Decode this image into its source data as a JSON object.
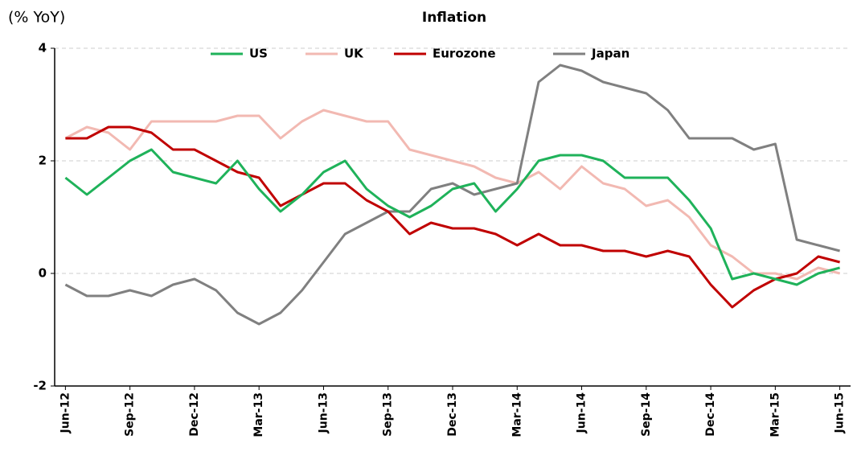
{
  "chart_data": {
    "type": "line",
    "title": "Inflation",
    "y_label": "(% YoY)",
    "categories": [
      "Jun-12",
      null,
      null,
      "Sep-12",
      null,
      null,
      "Dec-12",
      null,
      null,
      "Mar-13",
      null,
      null,
      "Jun-13",
      null,
      null,
      "Sep-13",
      null,
      null,
      "Dec-13",
      null,
      null,
      "Mar-14",
      null,
      null,
      "Jun-14",
      null,
      null,
      "Sep-14",
      null,
      null,
      "Dec-14",
      null,
      null,
      "Mar-15",
      null,
      null,
      "Jun-15"
    ],
    "series": [
      {
        "name": "US",
        "color": "#1fb25a",
        "values": [
          1.7,
          1.4,
          1.7,
          2.0,
          2.2,
          1.8,
          1.7,
          1.6,
          2.0,
          1.5,
          1.1,
          1.4,
          1.8,
          2.0,
          1.5,
          1.2,
          1.0,
          1.2,
          1.5,
          1.6,
          1.1,
          1.5,
          2.0,
          2.1,
          2.1,
          2.0,
          1.7,
          1.7,
          1.7,
          1.3,
          0.8,
          -0.1,
          0.0,
          -0.1,
          -0.2,
          0.0,
          0.1
        ]
      },
      {
        "name": "UK",
        "color": "#f2b9b2",
        "values": [
          2.4,
          2.6,
          2.5,
          2.2,
          2.7,
          2.7,
          2.7,
          2.7,
          2.8,
          2.8,
          2.4,
          2.7,
          2.9,
          2.8,
          2.7,
          2.7,
          2.2,
          2.1,
          2.0,
          1.9,
          1.7,
          1.6,
          1.8,
          1.5,
          1.9,
          1.6,
          1.5,
          1.2,
          1.3,
          1.0,
          0.5,
          0.3,
          0.0,
          0.0,
          -0.1,
          0.1,
          0.0
        ]
      },
      {
        "name": "Eurozone",
        "color": "#c00000",
        "values": [
          2.4,
          2.4,
          2.6,
          2.6,
          2.5,
          2.2,
          2.2,
          2.0,
          1.8,
          1.7,
          1.2,
          1.4,
          1.6,
          1.6,
          1.3,
          1.1,
          0.7,
          0.9,
          0.8,
          0.8,
          0.7,
          0.5,
          0.7,
          0.5,
          0.5,
          0.4,
          0.4,
          0.3,
          0.4,
          0.3,
          -0.2,
          -0.6,
          -0.3,
          -0.1,
          0.0,
          0.3,
          0.2
        ]
      },
      {
        "name": "Japan",
        "color": "#808080",
        "values": [
          -0.2,
          -0.4,
          -0.4,
          -0.3,
          -0.4,
          -0.2,
          -0.1,
          -0.3,
          -0.7,
          -0.9,
          -0.7,
          -0.3,
          0.2,
          0.7,
          0.9,
          1.1,
          1.1,
          1.5,
          1.6,
          1.4,
          1.5,
          1.6,
          3.4,
          3.7,
          3.6,
          3.4,
          3.3,
          3.2,
          2.9,
          2.4,
          2.4,
          2.4,
          2.2,
          2.3,
          0.6,
          0.5,
          0.4
        ]
      }
    ],
    "ylim": [
      -2,
      4
    ],
    "yticks": [
      -2,
      0,
      2,
      4
    ],
    "grid": true,
    "legend": "top"
  }
}
